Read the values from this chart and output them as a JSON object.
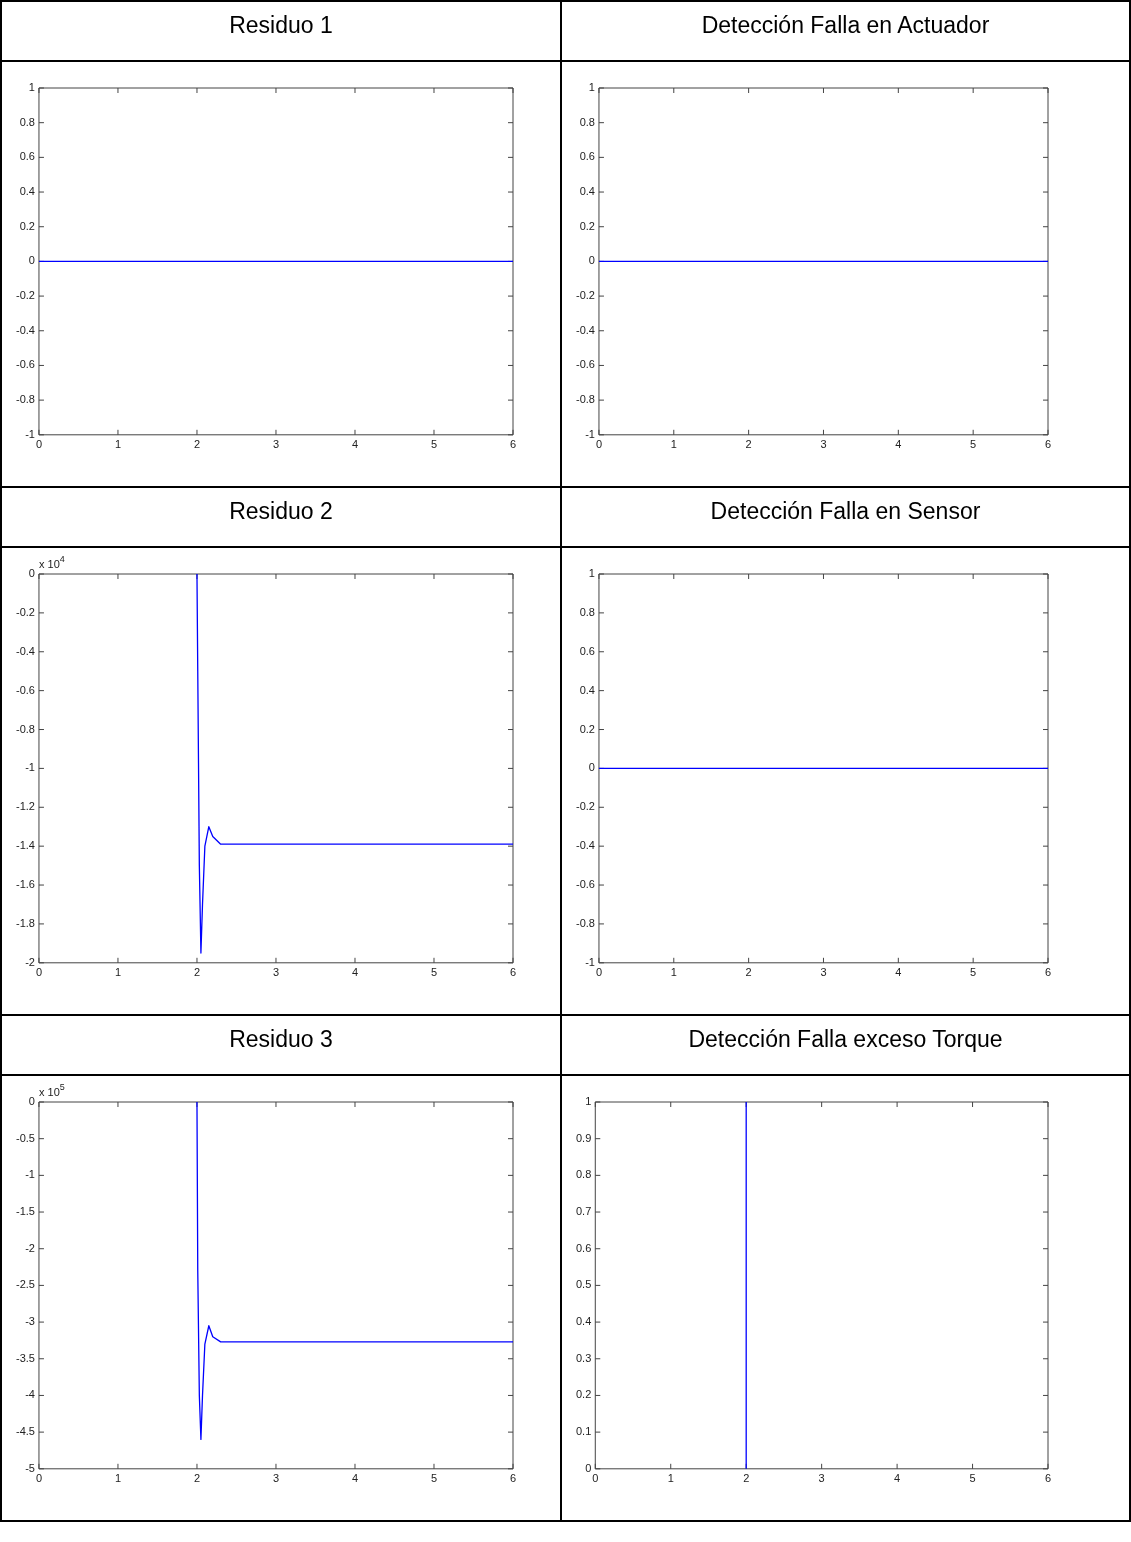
{
  "chart_data": [
    {
      "type": "line",
      "title": "Residuo 1",
      "x": [
        0,
        6
      ],
      "series": [
        {
          "color": "#0000ff",
          "values": [
            0,
            0
          ]
        }
      ],
      "xlim": [
        0,
        6
      ],
      "xticks": [
        0,
        1,
        2,
        3,
        4,
        5,
        6
      ],
      "ylim": [
        -1,
        1
      ],
      "yticks": [
        -1,
        -0.8,
        -0.6,
        -0.4,
        -0.2,
        0,
        0.2,
        0.4,
        0.6,
        0.8,
        1
      ],
      "grid": false,
      "legend": false
    },
    {
      "type": "line",
      "title": "Detección Falla en Actuador",
      "x": [
        0,
        6
      ],
      "series": [
        {
          "color": "#0000ff",
          "values": [
            0,
            0
          ]
        }
      ],
      "xlim": [
        0,
        6
      ],
      "xticks": [
        0,
        1,
        2,
        3,
        4,
        5,
        6
      ],
      "ylim": [
        -1,
        1
      ],
      "yticks": [
        -1,
        -0.8,
        -0.6,
        -0.4,
        -0.2,
        0,
        0.2,
        0.4,
        0.6,
        0.8,
        1
      ],
      "grid": false,
      "legend": false
    },
    {
      "type": "line",
      "title": "Residuo 2",
      "annotations": [
        "x 10$^{4}$"
      ],
      "x": [
        2,
        2.01,
        2.03,
        2.05,
        2.07,
        2.1,
        2.15,
        2.2,
        2.3,
        6
      ],
      "series": [
        {
          "color": "#0000ff",
          "values": [
            0,
            -0.5,
            -1.5,
            -1.95,
            -1.7,
            -1.4,
            -1.3,
            -1.35,
            -1.39,
            -1.39
          ]
        }
      ],
      "xlim": [
        0,
        6
      ],
      "xticks": [
        0,
        1,
        2,
        3,
        4,
        5,
        6
      ],
      "ylim": [
        -2,
        0
      ],
      "yticks": [
        -2,
        -1.8,
        -1.6,
        -1.4,
        -1.2,
        -1,
        -0.8,
        -0.6,
        -0.4,
        -0.2,
        0
      ],
      "grid": false,
      "legend": false
    },
    {
      "type": "line",
      "title": "Detección Falla en Sensor",
      "x": [
        0,
        6
      ],
      "series": [
        {
          "color": "#0000ff",
          "values": [
            0,
            0
          ]
        }
      ],
      "xlim": [
        0,
        6
      ],
      "xticks": [
        0,
        1,
        2,
        3,
        4,
        5,
        6
      ],
      "ylim": [
        -1,
        1
      ],
      "yticks": [
        -1,
        -0.8,
        -0.6,
        -0.4,
        -0.2,
        0,
        0.2,
        0.4,
        0.6,
        0.8,
        1
      ],
      "grid": false,
      "legend": false
    },
    {
      "type": "line",
      "title": "Residuo 3",
      "annotations": [
        "x 10$^{5}$"
      ],
      "x": [
        2,
        2.01,
        2.03,
        2.05,
        2.07,
        2.1,
        2.15,
        2.2,
        2.3,
        6
      ],
      "series": [
        {
          "color": "#0000ff",
          "values": [
            0,
            -2.3,
            -4,
            -4.6,
            -4,
            -3.3,
            -3.05,
            -3.2,
            -3.27,
            -3.27
          ]
        }
      ],
      "xlim": [
        0,
        6
      ],
      "xticks": [
        0,
        1,
        2,
        3,
        4,
        5,
        6
      ],
      "ylim": [
        -5,
        0
      ],
      "yticks": [
        -5,
        -4.5,
        -4,
        -3.5,
        -3,
        -2.5,
        -2,
        -1.5,
        -1,
        -0.5,
        0
      ],
      "grid": false,
      "legend": false
    },
    {
      "type": "line",
      "title": "Detección Falla exceso Torque",
      "x": [
        2,
        2
      ],
      "series": [
        {
          "color": "#0000ff",
          "values": [
            0,
            1
          ]
        }
      ],
      "xlim": [
        0,
        6
      ],
      "xticks": [
        0,
        1,
        2,
        3,
        4,
        5,
        6
      ],
      "ylim": [
        0,
        1
      ],
      "yticks": [
        0,
        0.1,
        0.2,
        0.3,
        0.4,
        0.5,
        0.6,
        0.7,
        0.8,
        0.9,
        1
      ],
      "grid": false,
      "legend": false
    }
  ]
}
